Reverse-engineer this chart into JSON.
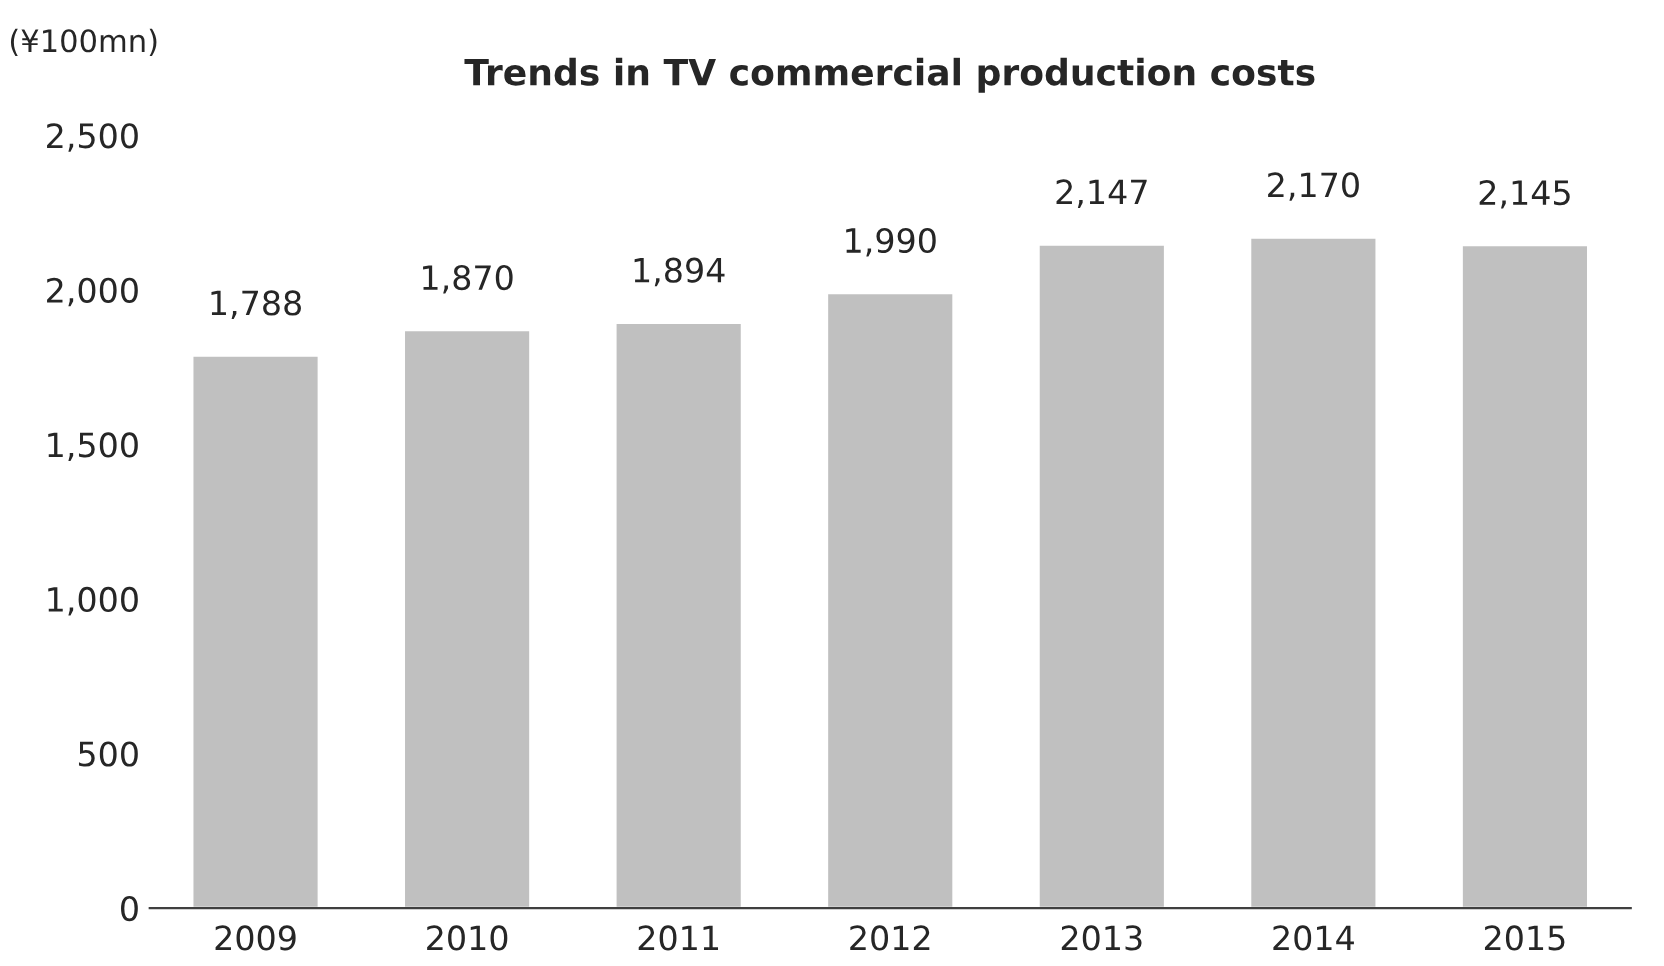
{
  "chart_data": {
    "type": "bar",
    "title": "Trends in TV commercial production costs",
    "ylabel": "(¥100mn)",
    "categories": [
      "2009",
      "2010",
      "2011",
      "2012",
      "2013",
      "2014",
      "2015"
    ],
    "values": [
      1788,
      1870,
      1894,
      1990,
      2147,
      2170,
      2145
    ],
    "color": "#c0c0c0",
    "ylim": [
      0,
      2500
    ],
    "yticks": [
      {
        "value": 0,
        "label": "0"
      },
      {
        "value": 500,
        "label": "500"
      },
      {
        "value": 1000,
        "label": "1,000"
      },
      {
        "value": 1500,
        "label": "1,500"
      },
      {
        "value": 2000,
        "label": "2,000"
      },
      {
        "value": 2500,
        "label": "2,500"
      }
    ],
    "value_labels": [
      "1,788",
      "1,870",
      "1,894",
      "1,990",
      "2,147",
      "2,170",
      "2,145"
    ],
    "grid": false
  }
}
